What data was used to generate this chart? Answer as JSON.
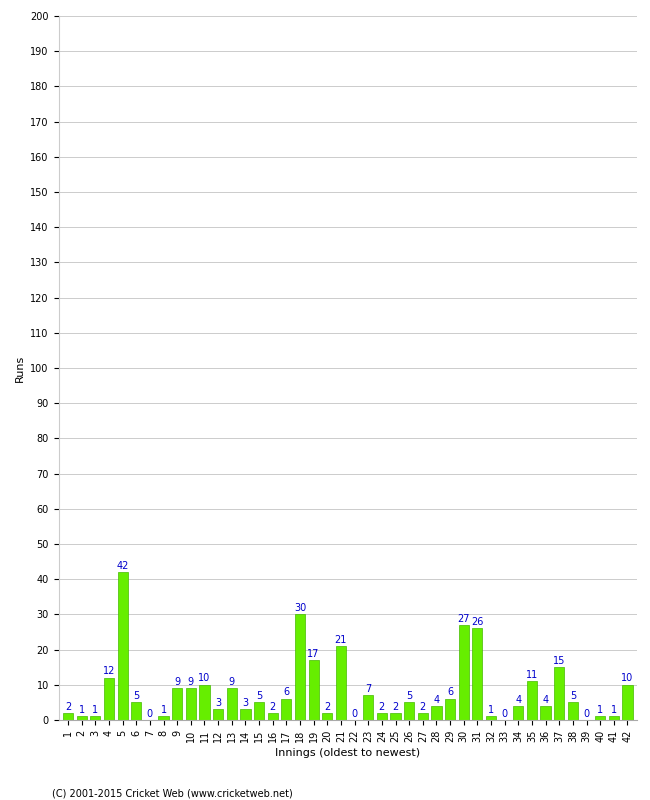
{
  "title": "",
  "xlabel": "Innings (oldest to newest)",
  "ylabel": "Runs",
  "footer": "(C) 2001-2015 Cricket Web (www.cricketweb.net)",
  "ylim": [
    0,
    200
  ],
  "yticks": [
    0,
    10,
    20,
    30,
    40,
    50,
    60,
    70,
    80,
    90,
    100,
    110,
    120,
    130,
    140,
    150,
    160,
    170,
    180,
    190,
    200
  ],
  "bar_color": "#66ee00",
  "bar_edge_color": "#44bb00",
  "label_color": "#0000cc",
  "innings": [
    1,
    2,
    3,
    4,
    5,
    6,
    7,
    8,
    9,
    10,
    11,
    12,
    13,
    14,
    15,
    16,
    17,
    18,
    19,
    20,
    21,
    22,
    23,
    24,
    25,
    26,
    27,
    28,
    29,
    30,
    31,
    32,
    33,
    34,
    35,
    36,
    37,
    38,
    39,
    40,
    41,
    42
  ],
  "values": [
    2,
    1,
    1,
    12,
    42,
    5,
    0,
    1,
    9,
    9,
    10,
    3,
    9,
    3,
    5,
    2,
    6,
    30,
    17,
    2,
    21,
    0,
    7,
    2,
    2,
    5,
    2,
    4,
    6,
    27,
    26,
    1,
    0,
    4,
    11,
    4,
    15,
    5,
    0,
    1,
    1,
    10
  ],
  "background_color": "#ffffff",
  "grid_color": "#cccccc",
  "label_fontsize": 8,
  "tick_fontsize": 7,
  "value_fontsize": 7,
  "footer_fontsize": 7
}
